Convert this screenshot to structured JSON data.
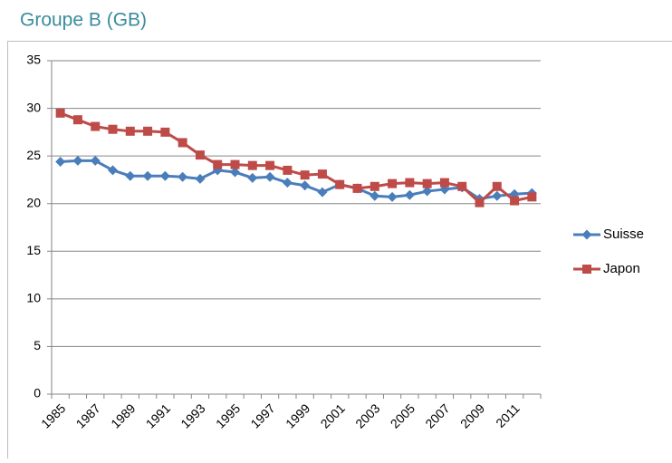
{
  "chart_data": {
    "type": "line",
    "title": "Groupe B (GB)",
    "categories": [
      "1985",
      null,
      "1987",
      null,
      "1989",
      null,
      "1991",
      null,
      "1993",
      null,
      "1995",
      null,
      "1997",
      null,
      "1999",
      null,
      "2001",
      null,
      "2003",
      null,
      "2005",
      null,
      "2007",
      null,
      "2009",
      null,
      "2011",
      null
    ],
    "series": [
      {
        "name": "Suisse",
        "color": "#4a7ebb",
        "marker": "diamond",
        "values": [
          24.4,
          24.5,
          24.5,
          23.5,
          22.9,
          22.9,
          22.9,
          22.8,
          22.6,
          23.5,
          23.3,
          22.7,
          22.8,
          22.2,
          21.9,
          21.2,
          22.0,
          21.6,
          20.8,
          20.7,
          20.9,
          21.3,
          21.5,
          21.7,
          20.5,
          20.8,
          21.0,
          21.1
        ]
      },
      {
        "name": "Japon",
        "color": "#be4b48",
        "marker": "square",
        "values": [
          29.5,
          28.8,
          28.1,
          27.8,
          27.6,
          27.6,
          27.5,
          26.4,
          25.1,
          24.1,
          24.1,
          24.0,
          24.0,
          23.5,
          23.0,
          23.1,
          22.0,
          21.6,
          21.8,
          22.1,
          22.2,
          22.1,
          22.2,
          21.8,
          20.1,
          21.8,
          20.3,
          20.7
        ]
      }
    ],
    "ylim": [
      0,
      35
    ],
    "yticks": [
      0,
      5,
      10,
      15,
      20,
      25,
      30,
      35
    ],
    "grid": true,
    "legend": "right"
  }
}
